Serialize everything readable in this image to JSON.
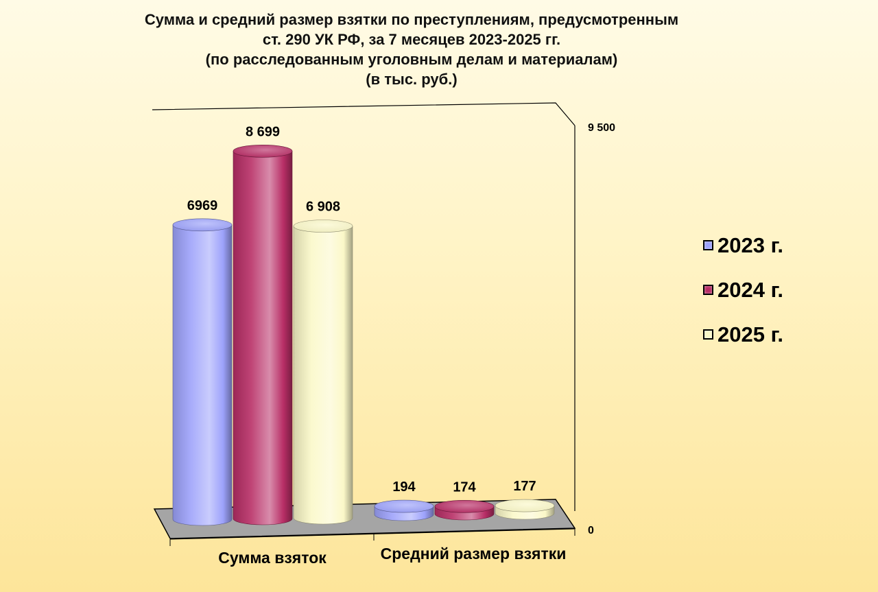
{
  "title": {
    "line1": "Сумма и средний размер взятки по преступлениям, предусмотренным",
    "line2": "ст. 290 УК РФ, за 7 месяцев 2023-2025 гг.",
    "line3": "(по расследованным уголовным делам и материалам)",
    "line4": "(в тыс. руб.)"
  },
  "legend": {
    "items": [
      {
        "label": "2023 г.",
        "color": "#9da2fb"
      },
      {
        "label": "2024 г.",
        "color": "#b82e66"
      },
      {
        "label": "2025 г.",
        "color": "#fbf8c8"
      }
    ]
  },
  "chart_data": {
    "type": "bar",
    "style": "3d-cylinder",
    "categories": [
      "Сумма взяток",
      "Средний размер взятки"
    ],
    "series": [
      {
        "name": "2023 г.",
        "values": [
          6969,
          194
        ],
        "labels": [
          "6969",
          "194"
        ],
        "color": "#9da2fb"
      },
      {
        "name": "2024 г.",
        "values": [
          8699,
          174
        ],
        "labels": [
          "8 699",
          "174"
        ],
        "color": "#b82e66"
      },
      {
        "name": "2025 г.",
        "values": [
          6908,
          177
        ],
        "labels": [
          "6 908",
          "177"
        ],
        "color": "#fbf8c8"
      }
    ],
    "ylim": [
      0,
      9500
    ],
    "ytick_labels": [
      "0",
      "9 500"
    ],
    "legend_position": "right",
    "grid": false
  }
}
